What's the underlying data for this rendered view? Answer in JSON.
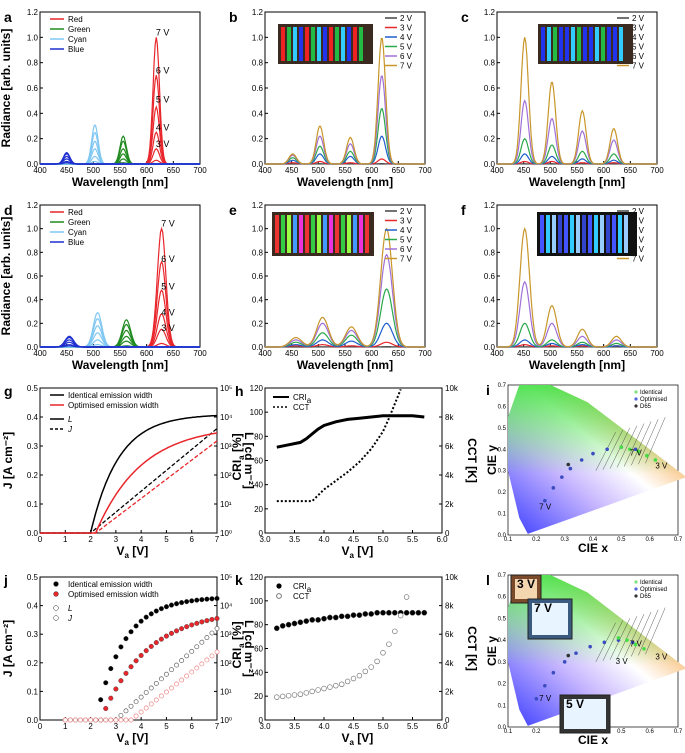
{
  "chart_data": [
    {
      "id": "a",
      "type": "line",
      "panel_label": "a",
      "xlabel": "Wavelength [nm]",
      "ylabel": "Radiance [arb. units]",
      "xlim": [
        400,
        700
      ],
      "ylim": [
        0,
        1.2
      ],
      "xticks": [
        "400",
        "450",
        "500",
        "550",
        "600",
        "650",
        "700"
      ],
      "yticks": [
        "0.0",
        "0.2",
        "0.4",
        "0.6",
        "0.8",
        "1.0",
        "1.2"
      ],
      "series": [
        {
          "name": "Red",
          "color": "#e8262b",
          "peak_nm": 618,
          "peaks": [
            0.03,
            0.12,
            0.25,
            0.45,
            0.7,
            1.0
          ]
        },
        {
          "name": "Green",
          "color": "#1f8a1f",
          "peak_nm": 556,
          "peaks": [
            0.01,
            0.04,
            0.08,
            0.12,
            0.18,
            0.22
          ]
        },
        {
          "name": "Cyan",
          "color": "#7fc7f2",
          "peak_nm": 503,
          "peaks": [
            0.02,
            0.06,
            0.12,
            0.18,
            0.25,
            0.31
          ]
        },
        {
          "name": "Blue",
          "color": "#1f2fcf",
          "peak_nm": 450,
          "peaks": [
            0.01,
            0.02,
            0.04,
            0.06,
            0.08,
            0.09
          ]
        }
      ],
      "voltage_labels": [
        "7 V",
        "6 V",
        "5 V",
        "4 V",
        "3 V"
      ]
    },
    {
      "id": "b",
      "type": "line",
      "panel_label": "b",
      "xlabel": "Wavelength [nm]",
      "ylabel": "",
      "xlim": [
        400,
        700
      ],
      "ylim": [
        0,
        1.2
      ],
      "xticks": [
        "400",
        "450",
        "500",
        "550",
        "600",
        "650",
        "700"
      ],
      "yticks": [
        "0.0",
        "0.2",
        "0.4",
        "0.6",
        "0.8",
        "1.0",
        "1.2"
      ],
      "series": [
        {
          "name": "2 V",
          "color": "#444444",
          "peaks": [
            0.0,
            0.002,
            0.002,
            0.003
          ]
        },
        {
          "name": "3 V",
          "color": "#e8262b",
          "peaks": [
            0.01,
            0.02,
            0.01,
            0.04
          ]
        },
        {
          "name": "4 V",
          "color": "#1f5fcf",
          "peaks": [
            0.03,
            0.08,
            0.06,
            0.22
          ]
        },
        {
          "name": "5 V",
          "color": "#2aa84a",
          "peaks": [
            0.05,
            0.14,
            0.1,
            0.44
          ]
        },
        {
          "name": "6 V",
          "color": "#a070d8",
          "peaks": [
            0.07,
            0.22,
            0.16,
            0.7
          ]
        },
        {
          "name": "7 V",
          "color": "#c8962a",
          "peaks": [
            0.08,
            0.3,
            0.21,
            1.0
          ]
        }
      ]
    },
    {
      "id": "c",
      "type": "line",
      "panel_label": "c",
      "xlabel": "Wavelength [nm]",
      "ylabel": "",
      "xlim": [
        400,
        700
      ],
      "ylim": [
        0,
        1.2
      ],
      "xticks": [
        "400",
        "450",
        "500",
        "550",
        "600",
        "650",
        "700"
      ],
      "yticks": [
        "0.0",
        "0.2",
        "0.4",
        "0.6",
        "0.8",
        "1.0",
        "1.2"
      ],
      "series": [
        {
          "name": "2 V",
          "color": "#444444",
          "peaks": [
            0.002,
            0.002,
            0.002,
            0.002
          ]
        },
        {
          "name": "3 V",
          "color": "#e8262b",
          "peaks": [
            0.02,
            0.02,
            0.01,
            0.01
          ]
        },
        {
          "name": "4 V",
          "color": "#1f5fcf",
          "peaks": [
            0.08,
            0.06,
            0.04,
            0.03
          ]
        },
        {
          "name": "5 V",
          "color": "#2aa84a",
          "peaks": [
            0.2,
            0.15,
            0.1,
            0.08
          ]
        },
        {
          "name": "6 V",
          "color": "#a070d8",
          "peaks": [
            0.5,
            0.36,
            0.26,
            0.19
          ]
        },
        {
          "name": "7 V",
          "color": "#c8962a",
          "peaks": [
            1.0,
            0.65,
            0.42,
            0.28
          ]
        }
      ]
    },
    {
      "id": "d",
      "type": "line",
      "panel_label": "d",
      "xlabel": "Wavelength [nm]",
      "ylabel": "Radiance [arb. units]",
      "xlim": [
        400,
        700
      ],
      "ylim": [
        0,
        1.2
      ],
      "xticks": [
        "400",
        "450",
        "500",
        "550",
        "600",
        "650",
        "700"
      ],
      "yticks": [
        "0.0",
        "0.2",
        "0.4",
        "0.6",
        "0.8",
        "1.0",
        "1.2"
      ],
      "series": [
        {
          "name": "Red",
          "color": "#e8262b",
          "peak_nm": 628,
          "peaks": [
            0.03,
            0.15,
            0.28,
            0.48,
            0.72,
            1.0
          ]
        },
        {
          "name": "Green",
          "color": "#1f8a1f",
          "peak_nm": 562,
          "peaks": [
            0.01,
            0.05,
            0.09,
            0.14,
            0.19,
            0.23
          ]
        },
        {
          "name": "Cyan",
          "color": "#7fc7f2",
          "peak_nm": 508,
          "peaks": [
            0.02,
            0.06,
            0.12,
            0.18,
            0.24,
            0.29
          ]
        },
        {
          "name": "Blue",
          "color": "#1f2fcf",
          "peak_nm": 455,
          "peaks": [
            0.01,
            0.02,
            0.04,
            0.06,
            0.08,
            0.09
          ]
        }
      ],
      "voltage_labels": [
        "7 V",
        "6 V",
        "5 V",
        "4 V",
        "3 V"
      ]
    },
    {
      "id": "e",
      "type": "line",
      "panel_label": "e",
      "xlabel": "Wavelength [nm]",
      "ylabel": "",
      "xlim": [
        400,
        700
      ],
      "ylim": [
        0,
        1.2
      ],
      "xticks": [
        "400",
        "450",
        "500",
        "550",
        "600",
        "650",
        "700"
      ],
      "yticks": [
        "0.0",
        "0.2",
        "0.4",
        "0.6",
        "0.8",
        "1.0",
        "1.2"
      ],
      "series": [
        {
          "name": "2 V",
          "color": "#444444",
          "peaks": [
            0.0,
            0.002,
            0.002,
            0.003
          ]
        },
        {
          "name": "3 V",
          "color": "#e8262b",
          "peaks": [
            0.01,
            0.02,
            0.01,
            0.04
          ]
        },
        {
          "name": "4 V",
          "color": "#1f5fcf",
          "peaks": [
            0.02,
            0.06,
            0.05,
            0.2
          ]
        },
        {
          "name": "5 V",
          "color": "#2aa84a",
          "peaks": [
            0.04,
            0.12,
            0.1,
            0.49
          ]
        },
        {
          "name": "6 V",
          "color": "#a070d8",
          "peaks": [
            0.06,
            0.2,
            0.14,
            0.78
          ]
        },
        {
          "name": "7 V",
          "color": "#c8962a",
          "peaks": [
            0.08,
            0.25,
            0.17,
            1.0
          ]
        }
      ]
    },
    {
      "id": "f",
      "type": "line",
      "panel_label": "f",
      "xlabel": "Wavelength [nm]",
      "ylabel": "",
      "xlim": [
        400,
        700
      ],
      "ylim": [
        0,
        1.2
      ],
      "xticks": [
        "400",
        "450",
        "500",
        "550",
        "600",
        "650",
        "700"
      ],
      "yticks": [
        "0.0",
        "0.2",
        "0.4",
        "0.6",
        "0.8",
        "1.0",
        "1.2"
      ],
      "series": [
        {
          "name": "2 V",
          "color": "#444444",
          "peaks": [
            0.002,
            0.002,
            0.002,
            0.002
          ]
        },
        {
          "name": "3 V",
          "color": "#e8262b",
          "peaks": [
            0.02,
            0.01,
            0.01,
            0.01
          ]
        },
        {
          "name": "4 V",
          "color": "#1f5fcf",
          "peaks": [
            0.06,
            0.03,
            0.02,
            0.01
          ]
        },
        {
          "name": "5 V",
          "color": "#2aa84a",
          "peaks": [
            0.2,
            0.06,
            0.04,
            0.03
          ]
        },
        {
          "name": "6 V",
          "color": "#a070d8",
          "peaks": [
            0.55,
            0.2,
            0.09,
            0.06
          ]
        },
        {
          "name": "7 V",
          "color": "#c8962a",
          "peaks": [
            1.0,
            0.35,
            0.15,
            0.09
          ]
        }
      ]
    },
    {
      "id": "g",
      "type": "line",
      "panel_label": "g",
      "xlabel": "V",
      "xlabel_sub": "a",
      "xlabel_unit": " [V]",
      "ylabel_left": "J [A cm⁻²]",
      "ylabel_right": "L [cd m⁻²]",
      "xlim": [
        0,
        7
      ],
      "ylim_left": [
        0,
        0.5
      ],
      "ylim_right_log": [
        1,
        100000
      ],
      "xticks": [
        "0",
        "1",
        "2",
        "3",
        "4",
        "5",
        "6",
        "7"
      ],
      "yticks_left": [
        "0.0",
        "0.1",
        "0.2",
        "0.3",
        "0.4",
        "0.5"
      ],
      "yticks_right": [
        "10⁰",
        "10¹",
        "10²",
        "10³",
        "10⁴",
        "10⁵"
      ],
      "legend": [
        "Identical emission width",
        "Optimised emission width",
        "L",
        "J"
      ],
      "series": [
        {
          "name": "Identical emission width",
          "color": "#000000",
          "onset_v": 2.0,
          "J_at_7V": 0.405,
          "L_at_7V": 4000
        },
        {
          "name": "Optimised emission width",
          "color": "#e8262b",
          "onset_v": 2.2,
          "J_at_7V": 0.345,
          "L_at_7V": 1500
        }
      ]
    },
    {
      "id": "h",
      "type": "line",
      "panel_label": "h",
      "xlabel": "V",
      "xlabel_sub": "a",
      "xlabel_unit": " [V]",
      "ylabel_left": "CRI",
      "ylabel_left_sub": "a",
      "ylabel_left_unit": " [%]",
      "ylabel_right": "CCT [K]",
      "xlim": [
        3.0,
        6.0
      ],
      "ylim_left": [
        0,
        120
      ],
      "ylim_right": [
        0,
        10000
      ],
      "xticks": [
        "3.0",
        "3.5",
        "4.0",
        "4.5",
        "5.0",
        "5.5",
        "6.0"
      ],
      "yticks_left": [
        "0",
        "20",
        "40",
        "60",
        "80",
        "100",
        "120"
      ],
      "yticks_right": [
        "0",
        "2k",
        "4k",
        "6k",
        "8k",
        "10k"
      ],
      "legend": [
        "CRI",
        "CCT"
      ],
      "CRI": {
        "x": [
          3.2,
          3.4,
          3.6,
          3.7,
          3.8,
          3.9,
          4.0,
          4.2,
          4.4,
          4.6,
          4.8,
          5.0,
          5.2,
          5.5,
          5.7
        ],
        "y": [
          71,
          73,
          75,
          78,
          82,
          86,
          89,
          92,
          94,
          95,
          96,
          97,
          97,
          97,
          96
        ]
      },
      "CCT": {
        "x": [
          3.2,
          3.4,
          3.6,
          3.8,
          3.9,
          4.0,
          4.2,
          4.4,
          4.6,
          4.8,
          5.0,
          5.1,
          5.2,
          5.3
        ],
        "y": [
          2200,
          2200,
          2200,
          2200,
          2600,
          3000,
          3600,
          4200,
          4900,
          5800,
          7000,
          7900,
          8900,
          9900
        ]
      }
    },
    {
      "id": "i",
      "type": "scatter",
      "panel_label": "i",
      "xlabel": "CIE x",
      "ylabel": "CIE y",
      "xlim": [
        0.1,
        0.7
      ],
      "ylim": [
        0.0,
        0.7
      ],
      "xticks": [
        "0.1",
        "0.2",
        "0.3",
        "0.4",
        "0.5",
        "0.6",
        "0.7"
      ],
      "yticks": [
        "0.0",
        "0.1",
        "0.2",
        "0.3",
        "0.4",
        "0.5",
        "0.6",
        "0.7"
      ],
      "legend": [
        "Identical",
        "Optimised",
        "D65"
      ],
      "identical": {
        "x": [
          0.62,
          0.59,
          0.56,
          0.53,
          0.5
        ],
        "y": [
          0.35,
          0.37,
          0.39,
          0.4,
          0.41
        ]
      },
      "optimised": {
        "x": [
          0.23,
          0.26,
          0.29,
          0.32,
          0.36,
          0.4,
          0.45,
          0.5,
          0.55
        ],
        "y": [
          0.16,
          0.22,
          0.27,
          0.31,
          0.35,
          0.38,
          0.4,
          0.41,
          0.4
        ]
      },
      "d65": {
        "x": [
          0.3127
        ],
        "y": [
          0.329
        ]
      },
      "labels": [
        "7 V",
        "3 V",
        "7 V"
      ]
    },
    {
      "id": "j",
      "type": "scatter",
      "panel_label": "j",
      "xlabel": "V",
      "xlabel_sub": "a",
      "xlabel_unit": " [V]",
      "ylabel_left": "J [A cm⁻²]",
      "ylabel_right": "L [cd m⁻²]",
      "xlim": [
        0,
        7
      ],
      "ylim_left": [
        0,
        0.5
      ],
      "ylim_right_log": [
        1,
        100000
      ],
      "xticks": [
        "0",
        "1",
        "2",
        "3",
        "4",
        "5",
        "6",
        "7"
      ],
      "yticks_left": [
        "0.0",
        "0.1",
        "0.2",
        "0.3",
        "0.4",
        "0.5"
      ],
      "yticks_right": [
        "10⁰",
        "10¹",
        "10²",
        "10³",
        "10⁴",
        "10⁵"
      ],
      "legend": [
        "Identical emission width",
        "Optimised emission width",
        "L",
        "J"
      ],
      "series": [
        {
          "name": "Identical emission width",
          "color": "#000000",
          "onset_v": 2.2,
          "J_at_7V": 0.425,
          "L_at_7V": 1500
        },
        {
          "name": "Optimised emission width",
          "color": "#e8262b",
          "onset_v": 2.4,
          "J_at_7V": 0.355,
          "L_at_7V": 250
        }
      ]
    },
    {
      "id": "k",
      "type": "scatter",
      "panel_label": "k",
      "xlabel": "V",
      "xlabel_sub": "a",
      "xlabel_unit": " [V]",
      "ylabel_left": "CRI",
      "ylabel_left_sub": "a",
      "ylabel_left_unit": " [%]",
      "ylabel_right": "CCT [K]",
      "xlim": [
        3.0,
        6.0
      ],
      "ylim_left": [
        0,
        120
      ],
      "ylim_right": [
        0,
        10000
      ],
      "xticks": [
        "3.0",
        "3.5",
        "4.0",
        "4.5",
        "5.0",
        "5.5",
        "6.0"
      ],
      "yticks_left": [
        "0",
        "20",
        "40",
        "60",
        "80",
        "100",
        "120"
      ],
      "yticks_right": [
        "0",
        "2k",
        "4k",
        "6k",
        "8k",
        "10k"
      ],
      "legend": [
        "CRI",
        "CCT"
      ],
      "CRI": {
        "x": [
          3.2,
          3.3,
          3.4,
          3.5,
          3.6,
          3.7,
          3.8,
          3.9,
          4.0,
          4.1,
          4.2,
          4.3,
          4.4,
          4.5,
          4.6,
          4.7,
          4.8,
          4.9,
          5.0,
          5.1,
          5.2,
          5.3,
          5.4,
          5.5,
          5.6,
          5.7
        ],
        "y": [
          77,
          79,
          80,
          81,
          82,
          83,
          84,
          84,
          85,
          86,
          86,
          87,
          87,
          88,
          88,
          89,
          89,
          90,
          90,
          90,
          90,
          90,
          90,
          90,
          90,
          90
        ]
      },
      "CCT": {
        "x": [
          3.2,
          3.3,
          3.4,
          3.5,
          3.6,
          3.7,
          3.8,
          3.9,
          4.0,
          4.1,
          4.2,
          4.3,
          4.4,
          4.5,
          4.6,
          4.7,
          4.8,
          4.9,
          5.0,
          5.1,
          5.2,
          5.3,
          5.4
        ],
        "y": [
          1600,
          1650,
          1700,
          1750,
          1800,
          1900,
          2000,
          2100,
          2200,
          2300,
          2400,
          2500,
          2700,
          2900,
          3100,
          3400,
          3700,
          4100,
          4700,
          5300,
          6200,
          7300,
          8600
        ]
      }
    },
    {
      "id": "l",
      "type": "scatter",
      "panel_label": "l",
      "xlabel": "CIE x",
      "ylabel": "CIE y",
      "xlim": [
        0.1,
        0.7
      ],
      "ylim": [
        0.0,
        0.7
      ],
      "xticks": [
        "0.1",
        "0.2",
        "0.3",
        "0.4",
        "0.5",
        "0.6",
        "0.7"
      ],
      "yticks": [
        "0.0",
        "0.1",
        "0.2",
        "0.3",
        "0.4",
        "0.5",
        "0.6",
        "0.7"
      ],
      "legend": [
        "Identical",
        "Optimised",
        "D65"
      ],
      "identical": {
        "x": [
          0.58,
          0.55,
          0.52,
          0.49
        ],
        "y": [
          0.36,
          0.38,
          0.4,
          0.41
        ]
      },
      "optimised": {
        "x": [
          0.2,
          0.23,
          0.26,
          0.3,
          0.34,
          0.39,
          0.44,
          0.49,
          0.54
        ],
        "y": [
          0.13,
          0.19,
          0.25,
          0.3,
          0.34,
          0.37,
          0.39,
          0.4,
          0.39
        ]
      },
      "d65": {
        "x": [
          0.3127
        ],
        "y": [
          0.329
        ]
      },
      "labels": [
        "7 V",
        "3 V",
        "7 V",
        "3 V"
      ],
      "photo_labels": [
        "3 V",
        "7 V",
        "5 V"
      ]
    }
  ]
}
